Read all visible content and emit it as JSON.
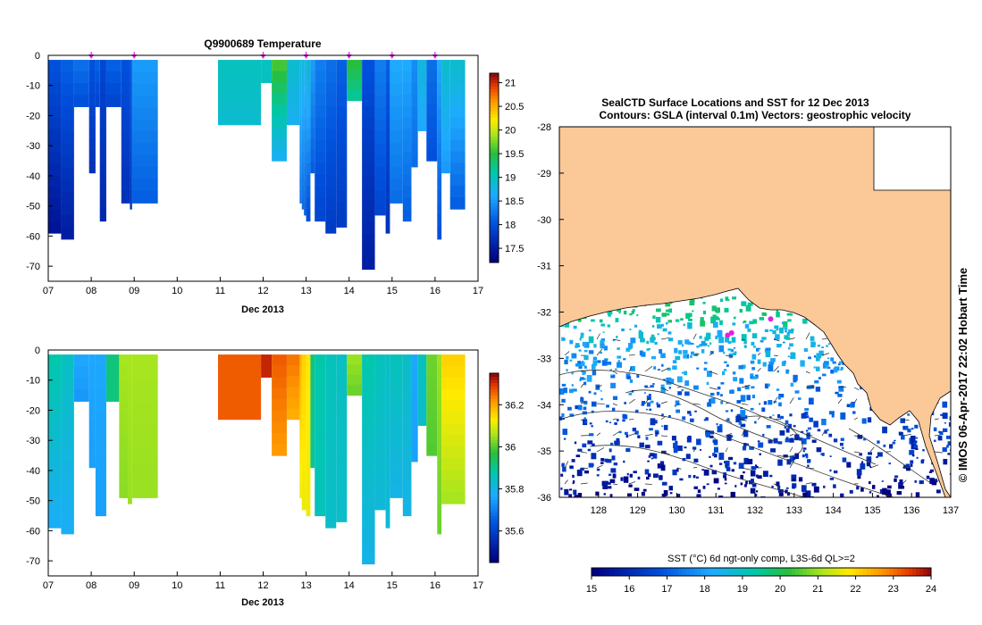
{
  "chart_data": [
    {
      "type": "heatmap",
      "title": "Q9900689  Temperature",
      "xlabel": "Dec 2013",
      "ylabel": "",
      "x_ticks": [
        "07",
        "08",
        "09",
        "10",
        "11",
        "12",
        "13",
        "14",
        "15",
        "16",
        "17"
      ],
      "xlim": [
        7,
        17
      ],
      "y_ticks": [
        "0",
        "-10",
        "-20",
        "-30",
        "-40",
        "-50",
        "-60",
        "-70"
      ],
      "ylim": [
        -75,
        0
      ],
      "markers_x": [
        8.0,
        9.0,
        12.0,
        13.0,
        14.0,
        15.0,
        16.0
      ],
      "colorbar": {
        "ticks": [
          "17.5",
          "18",
          "18.5",
          "19",
          "19.5",
          "20",
          "20.5",
          "21"
        ],
        "min": 17.2,
        "max": 21.2
      },
      "profiles": [
        {
          "x0": 7.0,
          "x1": 7.3,
          "depth": 59,
          "top": 18.0,
          "bottom": 17.4
        },
        {
          "x0": 7.3,
          "x1": 7.6,
          "depth": 61,
          "top": 18.1,
          "bottom": 17.5
        },
        {
          "x0": 7.6,
          "x1": 7.95,
          "depth": 17,
          "top": 18.2,
          "bottom": 18.0
        },
        {
          "x0": 7.95,
          "x1": 8.1,
          "depth": 39,
          "top": 18.0,
          "bottom": 17.7
        },
        {
          "x0": 8.1,
          "x1": 8.2,
          "depth": 17,
          "top": 18.1,
          "bottom": 17.9
        },
        {
          "x0": 8.2,
          "x1": 8.35,
          "depth": 55,
          "top": 17.9,
          "bottom": 17.6
        },
        {
          "x0": 8.35,
          "x1": 8.7,
          "depth": 17,
          "top": 18.1,
          "bottom": 17.9
        },
        {
          "x0": 8.7,
          "x1": 8.9,
          "depth": 49,
          "top": 18.0,
          "bottom": 17.7
        },
        {
          "x0": 8.9,
          "x1": 8.95,
          "depth": 51,
          "top": 18.0,
          "bottom": 17.7
        },
        {
          "x0": 8.95,
          "x1": 9.55,
          "depth": 49,
          "top": 18.5,
          "bottom": 18.1
        },
        {
          "x0": 10.95,
          "x1": 11.95,
          "depth": 23,
          "top": 19.0,
          "bottom": 18.9
        },
        {
          "x0": 11.95,
          "x1": 12.2,
          "depth": 9,
          "top": 19.0,
          "bottom": 19.0
        },
        {
          "x0": 12.2,
          "x1": 12.55,
          "depth": 35,
          "top": 19.6,
          "bottom": 18.7
        },
        {
          "x0": 12.55,
          "x1": 12.85,
          "depth": 23,
          "top": 18.9,
          "bottom": 18.7
        },
        {
          "x0": 12.85,
          "x1": 12.9,
          "depth": 49,
          "top": 18.8,
          "bottom": 18.2
        },
        {
          "x0": 12.9,
          "x1": 12.95,
          "depth": 51,
          "top": 18.8,
          "bottom": 18.2
        },
        {
          "x0": 12.95,
          "x1": 13.0,
          "depth": 53,
          "top": 18.7,
          "bottom": 18.1
        },
        {
          "x0": 13.0,
          "x1": 13.1,
          "depth": 55,
          "top": 18.9,
          "bottom": 18.0
        },
        {
          "x0": 13.1,
          "x1": 13.2,
          "depth": 39,
          "top": 18.5,
          "bottom": 18.1
        },
        {
          "x0": 13.2,
          "x1": 13.45,
          "depth": 55,
          "top": 18.3,
          "bottom": 17.9
        },
        {
          "x0": 13.45,
          "x1": 13.7,
          "depth": 59,
          "top": 18.2,
          "bottom": 17.8
        },
        {
          "x0": 13.7,
          "x1": 13.95,
          "depth": 57,
          "top": 18.1,
          "bottom": 17.8
        },
        {
          "x0": 13.95,
          "x1": 14.3,
          "depth": 15,
          "top": 19.5,
          "bottom": 19.2
        },
        {
          "x0": 14.3,
          "x1": 14.6,
          "depth": 71,
          "top": 18.0,
          "bottom": 17.5
        },
        {
          "x0": 14.6,
          "x1": 14.85,
          "depth": 53,
          "top": 18.3,
          "bottom": 17.9
        },
        {
          "x0": 14.85,
          "x1": 14.95,
          "depth": 59,
          "top": 18.1,
          "bottom": 17.7
        },
        {
          "x0": 14.95,
          "x1": 15.25,
          "depth": 49,
          "top": 18.6,
          "bottom": 18.2
        },
        {
          "x0": 15.25,
          "x1": 15.45,
          "depth": 55,
          "top": 18.6,
          "bottom": 18.1
        },
        {
          "x0": 15.45,
          "x1": 15.6,
          "depth": 37,
          "top": 18.4,
          "bottom": 18.2
        },
        {
          "x0": 15.6,
          "x1": 15.8,
          "depth": 25,
          "top": 18.8,
          "bottom": 18.6
        },
        {
          "x0": 15.8,
          "x1": 16.05,
          "depth": 35,
          "top": 18.2,
          "bottom": 18.0
        },
        {
          "x0": 16.05,
          "x1": 16.15,
          "depth": 61,
          "top": 18.6,
          "bottom": 18.0
        },
        {
          "x0": 16.15,
          "x1": 16.35,
          "depth": 39,
          "top": 18.9,
          "bottom": 18.5
        },
        {
          "x0": 16.35,
          "x1": 16.7,
          "depth": 51,
          "top": 18.9,
          "bottom": 18.1
        }
      ]
    },
    {
      "type": "heatmap",
      "title": "",
      "xlabel": "Dec 2013",
      "ylabel": "",
      "x_ticks": [
        "07",
        "08",
        "09",
        "10",
        "11",
        "12",
        "13",
        "14",
        "15",
        "16",
        "17"
      ],
      "xlim": [
        7,
        17
      ],
      "y_ticks": [
        "0",
        "-10",
        "-20",
        "-30",
        "-40",
        "-50",
        "-60",
        "-70"
      ],
      "ylim": [
        -75,
        0
      ],
      "colorbar": {
        "ticks": [
          "35.6",
          "35.8",
          "36",
          "36.2"
        ],
        "min": 35.45,
        "max": 36.35
      },
      "profiles": [
        {
          "x0": 7.0,
          "x1": 7.3,
          "depth": 59,
          "top": 35.88,
          "bottom": 35.78
        },
        {
          "x0": 7.3,
          "x1": 7.6,
          "depth": 61,
          "top": 35.85,
          "bottom": 35.78
        },
        {
          "x0": 7.6,
          "x1": 7.95,
          "depth": 17,
          "top": 35.76,
          "bottom": 35.74
        },
        {
          "x0": 7.95,
          "x1": 8.1,
          "depth": 39,
          "top": 35.76,
          "bottom": 35.75
        },
        {
          "x0": 8.1,
          "x1": 8.35,
          "depth": 55,
          "top": 35.76,
          "bottom": 35.75
        },
        {
          "x0": 8.35,
          "x1": 8.65,
          "depth": 17,
          "top": 35.92,
          "bottom": 35.92
        },
        {
          "x0": 8.65,
          "x1": 8.85,
          "depth": 49,
          "top": 36.06,
          "bottom": 36.04
        },
        {
          "x0": 8.85,
          "x1": 8.95,
          "depth": 51,
          "top": 36.06,
          "bottom": 36.05
        },
        {
          "x0": 8.95,
          "x1": 9.55,
          "depth": 49,
          "top": 36.06,
          "bottom": 36.05
        },
        {
          "x0": 10.95,
          "x1": 11.95,
          "depth": 23,
          "top": 36.27,
          "bottom": 36.27
        },
        {
          "x0": 11.95,
          "x1": 12.2,
          "depth": 9,
          "top": 36.32,
          "bottom": 36.32
        },
        {
          "x0": 12.2,
          "x1": 12.55,
          "depth": 35,
          "top": 36.27,
          "bottom": 36.22
        },
        {
          "x0": 12.55,
          "x1": 12.85,
          "depth": 23,
          "top": 36.25,
          "bottom": 36.2
        },
        {
          "x0": 12.85,
          "x1": 12.9,
          "depth": 49,
          "top": 36.2,
          "bottom": 36.12
        },
        {
          "x0": 12.9,
          "x1": 13.0,
          "depth": 53,
          "top": 36.16,
          "bottom": 36.12
        },
        {
          "x0": 13.0,
          "x1": 13.1,
          "depth": 55,
          "top": 36.14,
          "bottom": 36.12
        },
        {
          "x0": 13.1,
          "x1": 13.2,
          "depth": 39,
          "top": 35.92,
          "bottom": 35.9
        },
        {
          "x0": 13.2,
          "x1": 13.45,
          "depth": 55,
          "top": 35.88,
          "bottom": 35.86
        },
        {
          "x0": 13.45,
          "x1": 13.7,
          "depth": 59,
          "top": 35.86,
          "bottom": 35.84
        },
        {
          "x0": 13.7,
          "x1": 13.95,
          "depth": 57,
          "top": 35.85,
          "bottom": 35.84
        },
        {
          "x0": 13.95,
          "x1": 14.3,
          "depth": 15,
          "top": 36.05,
          "bottom": 36.02
        },
        {
          "x0": 14.3,
          "x1": 14.6,
          "depth": 71,
          "top": 35.88,
          "bottom": 35.8
        },
        {
          "x0": 14.6,
          "x1": 14.85,
          "depth": 53,
          "top": 35.86,
          "bottom": 35.82
        },
        {
          "x0": 14.85,
          "x1": 14.95,
          "depth": 59,
          "top": 35.84,
          "bottom": 35.82
        },
        {
          "x0": 14.95,
          "x1": 15.25,
          "depth": 49,
          "top": 35.86,
          "bottom": 35.8
        },
        {
          "x0": 15.25,
          "x1": 15.45,
          "depth": 55,
          "top": 35.84,
          "bottom": 35.8
        },
        {
          "x0": 15.45,
          "x1": 15.6,
          "depth": 37,
          "top": 35.76,
          "bottom": 35.75
        },
        {
          "x0": 15.6,
          "x1": 15.8,
          "depth": 25,
          "top": 35.86,
          "bottom": 35.84
        },
        {
          "x0": 15.8,
          "x1": 16.05,
          "depth": 35,
          "top": 36.02,
          "bottom": 36.0
        },
        {
          "x0": 16.05,
          "x1": 16.15,
          "depth": 61,
          "top": 36.05,
          "bottom": 36.02
        },
        {
          "x0": 16.15,
          "x1": 16.7,
          "depth": 51,
          "top": 36.16,
          "bottom": 36.06
        }
      ]
    },
    {
      "type": "heatmap",
      "title": "SealCTD Surface Locations and SST for 12 Dec 2013",
      "subtitle": "Contours: GSLA (interval 0.1m) Vectors: geostrophic velocity",
      "xlabel": "",
      "ylabel": "",
      "x_ticks": [
        "128",
        "129",
        "130",
        "131",
        "132",
        "133",
        "134",
        "135",
        "136",
        "137"
      ],
      "xlim": [
        127,
        137
      ],
      "y_ticks": [
        "-28",
        "-29",
        "-30",
        "-31",
        "-32",
        "-33",
        "-34",
        "-35",
        "-36"
      ],
      "ylim": [
        -36,
        -28
      ],
      "seal_locations": [
        [
          131.3,
          -32.5
        ],
        [
          131.4,
          -32.45
        ],
        [
          132.4,
          -32.15
        ]
      ],
      "colorbar": {
        "label": "SST (°C) 6d ngt-only comp, L3S-6d QL>=2",
        "ticks": [
          "15",
          "16",
          "17",
          "18",
          "19",
          "20",
          "21",
          "22",
          "23",
          "24"
        ],
        "min": 15,
        "max": 24
      }
    }
  ],
  "credit": "© IMOS 06-Apr-2017 22:02 Hobart Time",
  "colors": {
    "land": "#fbc898",
    "marker": "#e020e0",
    "background": "#ffffff"
  }
}
